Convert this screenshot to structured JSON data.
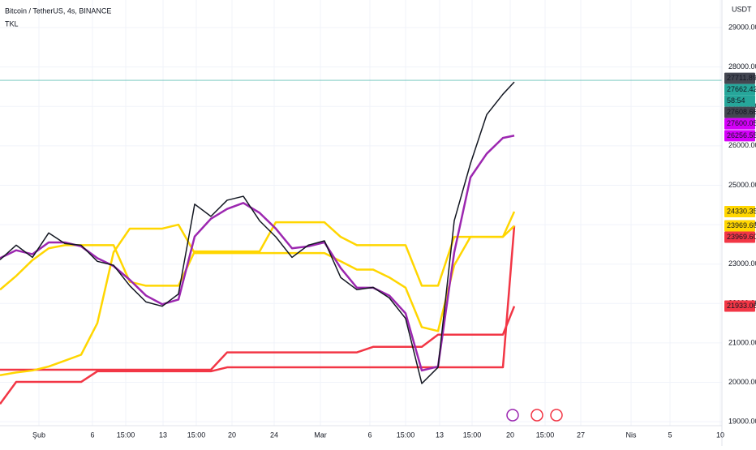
{
  "chart_data": {
    "type": "line",
    "title": "Bitcoin / TetherUS, 4s, BINANCE",
    "subtitle": "TKL",
    "y_unit_label": "USDT",
    "x": [
      0,
      2,
      4,
      6,
      8,
      10,
      12,
      14,
      16,
      18,
      20,
      22,
      24,
      26,
      28,
      30,
      32,
      34,
      36,
      38,
      40,
      42,
      44,
      46,
      48,
      50,
      52,
      54,
      56,
      58,
      60,
      62,
      63.4
    ],
    "xlim": [
      0,
      89
    ],
    "xticks": [
      {
        "value": 4.8,
        "label": "Şub"
      },
      {
        "value": 11.4,
        "label": "6"
      },
      {
        "value": 15.5,
        "label": "15:00"
      },
      {
        "value": 20.1,
        "label": "13"
      },
      {
        "value": 24.2,
        "label": "15:00"
      },
      {
        "value": 28.6,
        "label": "20"
      },
      {
        "value": 33.8,
        "label": "24"
      },
      {
        "value": 39.5,
        "label": "Mar"
      },
      {
        "value": 45.6,
        "label": "6"
      },
      {
        "value": 50,
        "label": "15:00"
      },
      {
        "value": 54.2,
        "label": "13"
      },
      {
        "value": 58.2,
        "label": "15:00"
      },
      {
        "value": 62.9,
        "label": "20"
      },
      {
        "value": 67.2,
        "label": "15:00"
      },
      {
        "value": 71.6,
        "label": "27"
      },
      {
        "value": 77.8,
        "label": "Nis"
      },
      {
        "value": 82.6,
        "label": "5"
      },
      {
        "value": 88.8,
        "label": "10"
      }
    ],
    "ylim": [
      18900,
      29700
    ],
    "yticks": [
      {
        "value": 19000,
        "label": "19000.00"
      },
      {
        "value": 20000,
        "label": "20000.00"
      },
      {
        "value": 21000,
        "label": "21000.00"
      },
      {
        "value": 22000,
        "label": "22000.00"
      },
      {
        "value": 23000,
        "label": "23000.00"
      },
      {
        "value": 24000,
        "label": "24000.00"
      },
      {
        "value": 25000,
        "label": "25000.00"
      },
      {
        "value": 26000,
        "label": "26000.00"
      },
      {
        "value": 27000,
        "label": "27000.00"
      },
      {
        "value": 28000,
        "label": "28000.00"
      },
      {
        "value": 29000,
        "label": "29000.00"
      }
    ],
    "grid": true,
    "series": [
      {
        "color": "#f23645",
        "width": 2.5,
        "values": [
          20320,
          20320,
          20320,
          20320,
          20320,
          20320,
          20320,
          20320,
          20320,
          20320,
          20320,
          20320,
          20320,
          20320,
          20760,
          20760,
          20760,
          20760,
          20760,
          20760,
          20760,
          20760,
          20760,
          20900,
          20900,
          20900,
          20900,
          21210,
          21210,
          21210,
          21210,
          21210,
          21930
        ]
      },
      {
        "color": "#f23645",
        "width": 2.5,
        "values": [
          19450,
          20010,
          20010,
          20010,
          20010,
          20010,
          20280,
          20280,
          20280,
          20280,
          20280,
          20280,
          20280,
          20280,
          20380,
          20380,
          20380,
          20380,
          20380,
          20380,
          20380,
          20380,
          20380,
          20380,
          20380,
          20380,
          20380,
          20380,
          20380,
          20380,
          20380,
          20380,
          23970
        ]
      },
      {
        "color": "#ffd600",
        "width": 2.5,
        "values": [
          22350,
          22700,
          23100,
          23400,
          23480,
          23480,
          23480,
          23480,
          22550,
          22450,
          22450,
          22450,
          23320,
          23320,
          23320,
          23320,
          23320,
          24060,
          24060,
          24060,
          24060,
          23690,
          23480,
          23480,
          23480,
          23480,
          22450,
          22450,
          23690,
          23690,
          23690,
          23690,
          24330
        ]
      },
      {
        "color": "#ffd600",
        "width": 2.5,
        "values": [
          20180,
          20250,
          20300,
          20400,
          20550,
          20700,
          21500,
          23300,
          23900,
          23900,
          23900,
          24000,
          23280,
          23280,
          23280,
          23280,
          23280,
          23280,
          23280,
          23280,
          23280,
          23070,
          22860,
          22860,
          22660,
          22400,
          21400,
          21300,
          22970,
          23690,
          23690,
          23690,
          23970
        ]
      },
      {
        "color": "#9c27b0",
        "width": 2.5,
        "values": [
          23150,
          23350,
          23250,
          23550,
          23550,
          23450,
          23150,
          22950,
          22600,
          22200,
          21980,
          22100,
          23700,
          24150,
          24400,
          24550,
          24300,
          23900,
          23400,
          23450,
          23550,
          22900,
          22400,
          22400,
          22200,
          21750,
          20300,
          20400,
          23300,
          25200,
          25800,
          26200,
          26260
        ]
      },
      {
        "color": "#131722",
        "width": 1.5,
        "values": [
          23110,
          23480,
          23170,
          23790,
          23520,
          23480,
          23070,
          22970,
          22450,
          22040,
          21930,
          22240,
          24520,
          24210,
          24620,
          24720,
          24100,
          23690,
          23170,
          23480,
          23590,
          22660,
          22350,
          22410,
          22140,
          21620,
          19970,
          20380,
          24100,
          25550,
          26790,
          27310,
          27620
        ]
      }
    ],
    "price_line": {
      "value": 27662.42,
      "color": "#26a69a"
    },
    "price_labels": [
      {
        "value": 27711.89,
        "label": "27711.89",
        "color": "#434651",
        "text_color": "#ffffff"
      },
      {
        "value": 27662.42,
        "label": "27662.42",
        "color": "#26a69a",
        "text_color": "#ffffff"
      },
      {
        "value": 27608.66,
        "label": "27608.66",
        "color": "#434651",
        "text_color": "#ffffff"
      },
      {
        "value": 27600.05,
        "label": "27600.05",
        "color": "#d500f9",
        "text_color": "#ffffff"
      },
      {
        "value": 26256.55,
        "label": "26256.55",
        "color": "#d500f9",
        "text_color": "#ffffff"
      },
      {
        "value": 24330.35,
        "label": "24330.35",
        "color": "#ffd600",
        "text_color": "#131722"
      },
      {
        "value": 23969.6,
        "label": "23969.60",
        "color": "#ffd600",
        "text_color": "#131722"
      },
      {
        "value": 23969.6,
        "label": "23969.60",
        "color": "#f23645",
        "text_color": "#ffffff"
      },
      {
        "value": 21933.06,
        "label": "21933.06",
        "color": "#f23645",
        "text_color": "#ffffff"
      }
    ],
    "countdown": "58:54"
  }
}
